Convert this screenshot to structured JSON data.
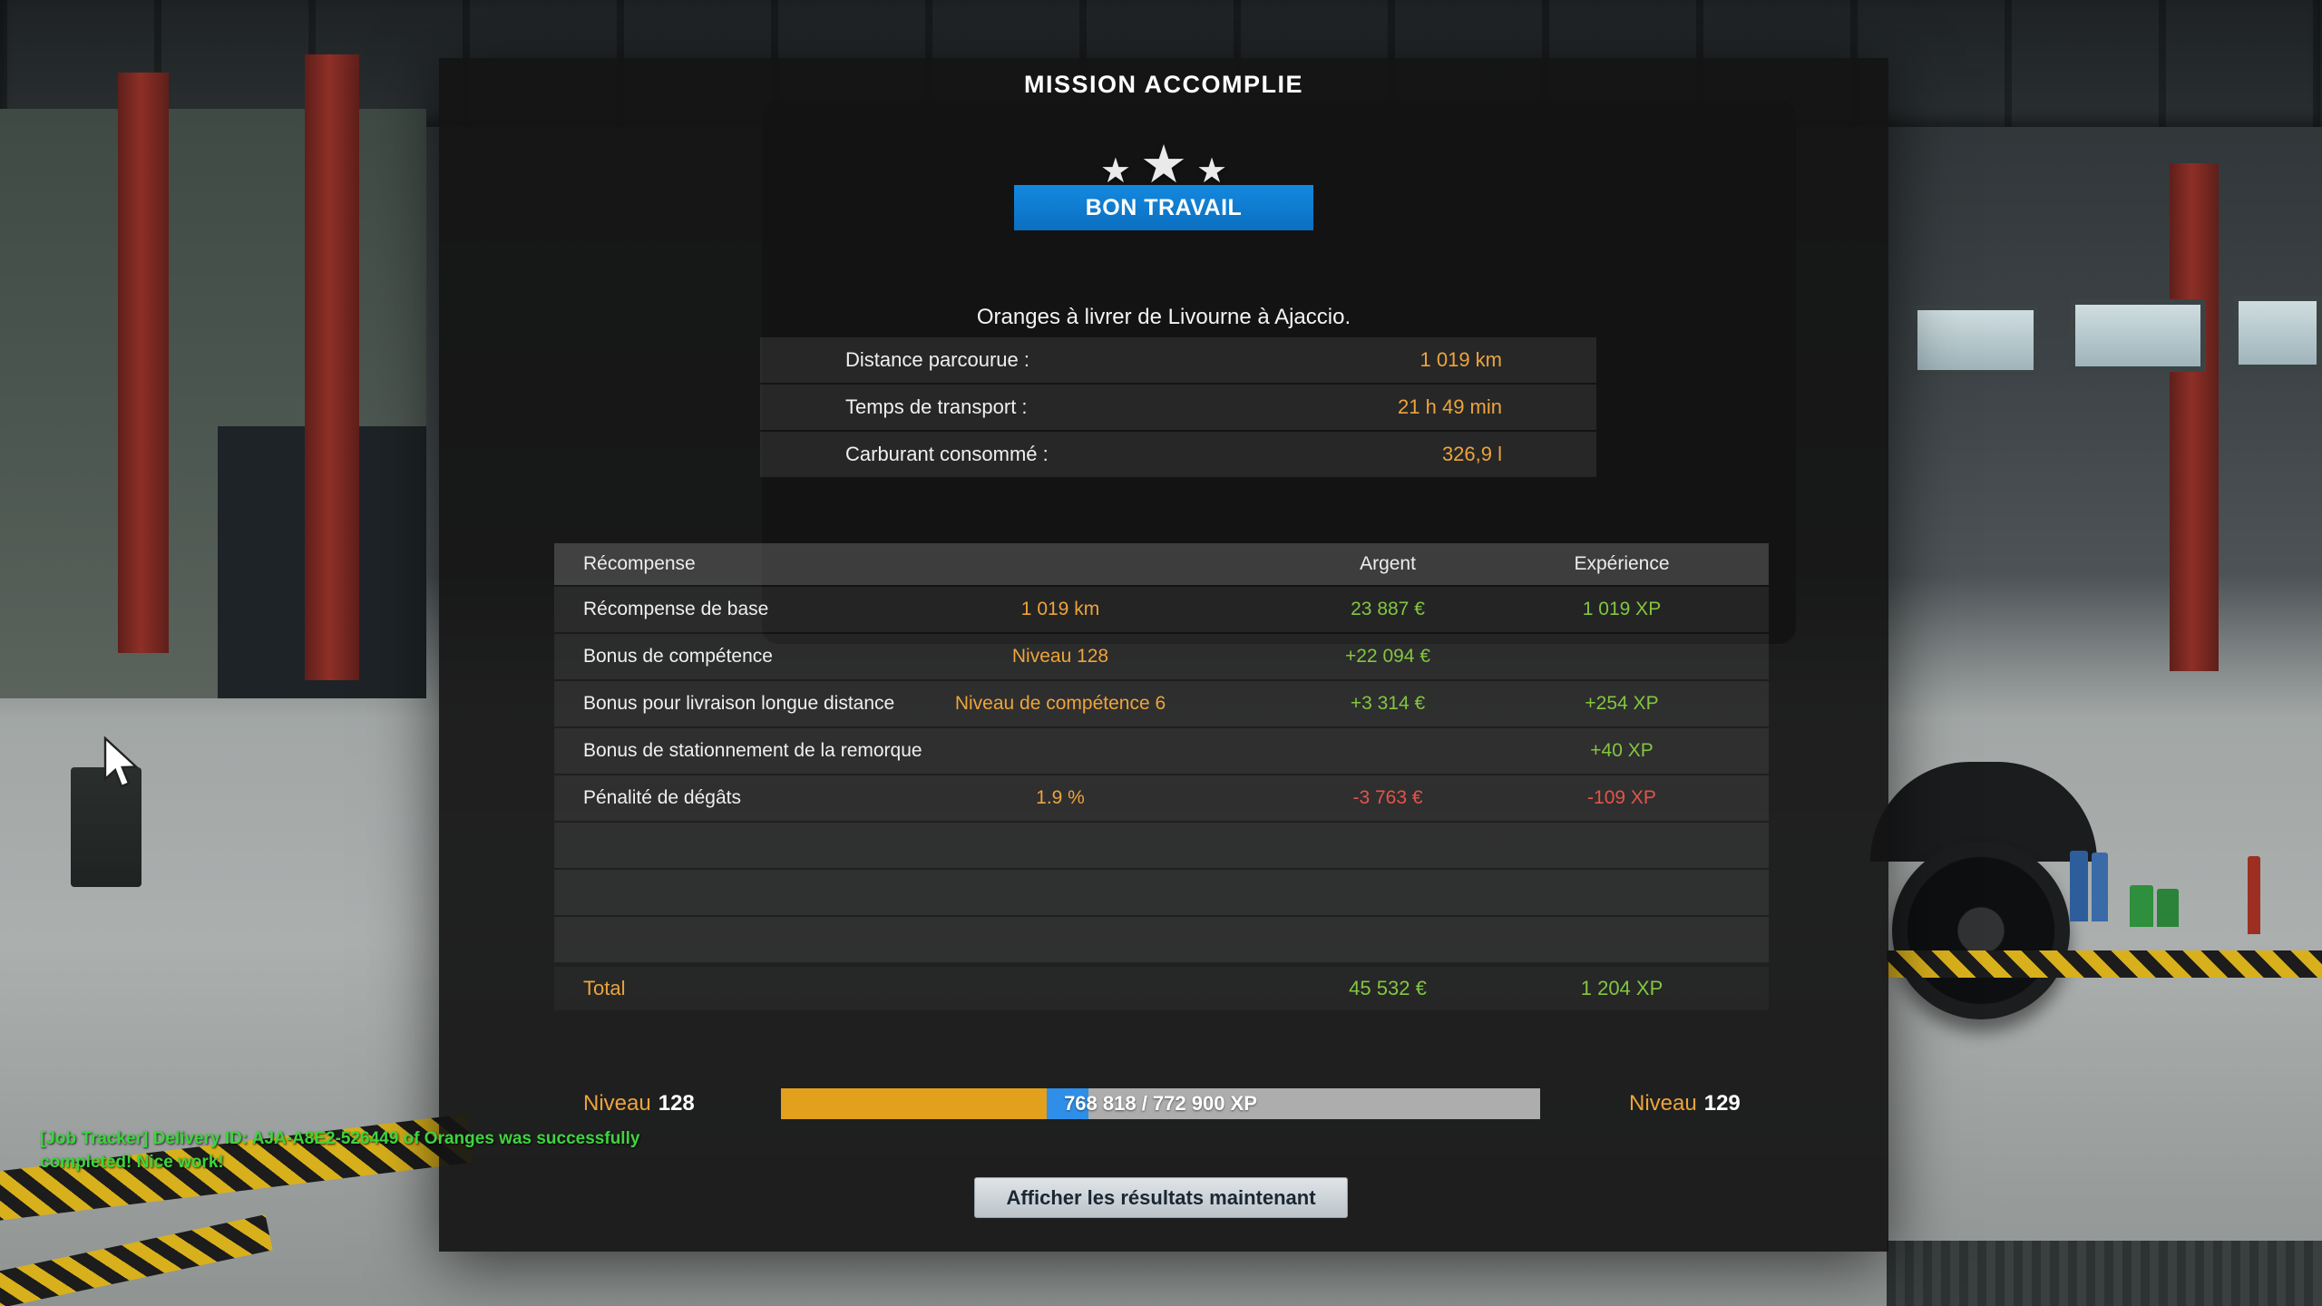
{
  "colors": {
    "accent_orange": "#eda43b",
    "positive_green": "#82c640",
    "negative_red": "#e4544a",
    "banner_blue": "#0e82d8",
    "toast_green": "#3ed43e",
    "xp_fill_orange": "#e2a01c",
    "xp_marker_blue": "#2f8fe8"
  },
  "icons": {
    "star": "★"
  },
  "panel": {
    "title": "MISSION ACCOMPLIE",
    "banner_label": "BON TRAVAIL",
    "description": "Oranges à livrer de Livourne à Ajaccio.",
    "stats": [
      {
        "label": "Distance parcourue :",
        "value": "1 019 km"
      },
      {
        "label": "Temps de transport :",
        "value": "21 h 49 min"
      },
      {
        "label": "Carburant consommé :",
        "value": "326,9 l"
      }
    ],
    "rewards": {
      "headers": {
        "name": "Récompense",
        "money": "Argent",
        "xp": "Expérience"
      },
      "rows": [
        {
          "name": "Récompense de base",
          "detail": "1 019 km",
          "money": "23 887 €",
          "xp": "1 019 XP"
        },
        {
          "name": "Bonus de compétence",
          "detail": "Niveau 128",
          "money": "+22 094 €",
          "xp": ""
        },
        {
          "name": "Bonus pour livraison longue distance",
          "detail": "Niveau de compétence 6",
          "money": "+3 314 €",
          "xp": "+254 XP"
        },
        {
          "name": "Bonus de stationnement de la remorque",
          "detail": "",
          "money": "",
          "xp": "+40 XP"
        },
        {
          "name": "Pénalité de dégâts",
          "detail": "1.9 %",
          "money": "-3 763 €",
          "xp": "-109 XP"
        },
        {
          "name": "",
          "detail": "",
          "money": "",
          "xp": ""
        },
        {
          "name": "",
          "detail": "",
          "money": "",
          "xp": ""
        },
        {
          "name": "",
          "detail": "",
          "money": "",
          "xp": ""
        }
      ],
      "total": {
        "label": "Total",
        "money": "45 532 €",
        "xp": "1 204 XP"
      }
    },
    "xp_bar": {
      "left_label": "Niveau",
      "left_level": "128",
      "right_label": "Niveau",
      "right_level": "129",
      "progress_text": "768 818 / 772 900 XP",
      "fill_percent": 35,
      "marker_percent": 5.5
    },
    "footer_button": "Afficher les résultats maintenant"
  },
  "toast": {
    "line1": "[Job Tracker] Delivery ID: AJA-A8E2-526449 of Oranges was successfully",
    "line2": "completed! Nice work!"
  }
}
